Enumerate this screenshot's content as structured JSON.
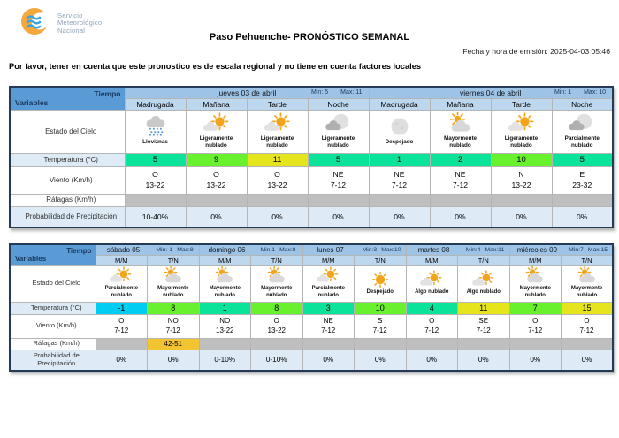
{
  "header": {
    "logo_lines": [
      "Servicio",
      "Meteorológico",
      "Nacional"
    ],
    "title": "Paso Pehuenche- PRONÓSTICO SEMANAL",
    "emission": "Fecha y hora de emisión: 2025-04-03 05:46",
    "notice": "Por favor, tener en cuenta que este pronostico es de escala regional y no tiene en cuenta factores locales"
  },
  "corner": {
    "tiempo": "Tiempo",
    "variables": "Variables"
  },
  "row_labels": [
    "Estado del Cielo",
    "Temperatura (°C)",
    "Viento (Km/h)",
    "Ráfagas (Km/h)",
    "Probabilidad de Precipitación"
  ],
  "palette": {
    "mint": "#0BE39B",
    "green": "#69F12E",
    "yellow": "#E6E41C",
    "cyan": "#00CDF2",
    "gust": "#F2C431",
    "gust_empty": "#BFBFBF"
  },
  "table1": {
    "days": [
      {
        "name": "jueves 03 de abril",
        "min": "Min: 5",
        "max": "Max: 11",
        "cols": [
          "Madrugada",
          "Mañana",
          "Tarde",
          "Noche"
        ]
      },
      {
        "name": "viernes 04 de abril",
        "min": "Min: 1",
        "max": "Max: 10",
        "cols": [
          "Madrugada",
          "Mañana",
          "Tarde",
          "Noche"
        ]
      }
    ],
    "sky": [
      {
        "icon": "drizzle",
        "label": "Lloviznas"
      },
      {
        "icon": "sun_cloud",
        "label": "Ligeramente nublado"
      },
      {
        "icon": "sun_cloud",
        "label": "Ligeramente nublado"
      },
      {
        "icon": "moon_cloud",
        "label": "Ligeramente nublado"
      },
      {
        "icon": "moon",
        "label": "Despejado"
      },
      {
        "icon": "cloud_sun",
        "label": "Mayormente nublado"
      },
      {
        "icon": "sun_cloud",
        "label": "Ligeramente nublado"
      },
      {
        "icon": "moon_cloud",
        "label": "Parcialmente nublado"
      }
    ],
    "temps": [
      {
        "v": "5",
        "c": "mint"
      },
      {
        "v": "9",
        "c": "green"
      },
      {
        "v": "11",
        "c": "yellow"
      },
      {
        "v": "5",
        "c": "mint"
      },
      {
        "v": "1",
        "c": "mint"
      },
      {
        "v": "2",
        "c": "mint"
      },
      {
        "v": "10",
        "c": "green"
      },
      {
        "v": "5",
        "c": "mint"
      }
    ],
    "wind": [
      {
        "d": "O",
        "s": "13-22"
      },
      {
        "d": "O",
        "s": "13-22"
      },
      {
        "d": "O",
        "s": "13-22"
      },
      {
        "d": "NE",
        "s": "7-12"
      },
      {
        "d": "NE",
        "s": "7-12"
      },
      {
        "d": "NE",
        "s": "7-12"
      },
      {
        "d": "N",
        "s": "13-22"
      },
      {
        "d": "E",
        "s": "23-32"
      }
    ],
    "gusts": [
      "",
      "",
      "",
      "",
      "",
      "",
      "",
      ""
    ],
    "precip": [
      "10-40%",
      "0%",
      "0%",
      "0%",
      "0%",
      "0%",
      "0%",
      "0%"
    ]
  },
  "table2": {
    "days": [
      {
        "name": "sábado 05",
        "min": "Min:-1",
        "max": "Max:8",
        "cols": [
          "M/M",
          "T/N"
        ]
      },
      {
        "name": "domingo 06",
        "min": "Min:1",
        "max": "Max:8",
        "cols": [
          "M/M",
          "T/N"
        ]
      },
      {
        "name": "lunes 07",
        "min": "Min:3",
        "max": "Max:10",
        "cols": [
          "M/M",
          "T/N"
        ]
      },
      {
        "name": "martes 08",
        "min": "Min:4",
        "max": "Max:11",
        "cols": [
          "M/M",
          "T/N"
        ]
      },
      {
        "name": "miércoles 09",
        "min": "Min:7",
        "max": "Max:15",
        "cols": [
          "M/M",
          "T/N"
        ]
      }
    ],
    "sky": [
      {
        "icon": "sun_cloud",
        "label": "Parcialmente nublado"
      },
      {
        "icon": "cloud_sun",
        "label": "Mayormente nublado"
      },
      {
        "icon": "cloud_sun",
        "label": "Mayormente nublado"
      },
      {
        "icon": "cloud_sun",
        "label": "Mayormente nublado"
      },
      {
        "icon": "sun_cloud",
        "label": "Parcialmente nublado"
      },
      {
        "icon": "sun",
        "label": "Despejado"
      },
      {
        "icon": "sun_cloud",
        "label": "Algo nublado"
      },
      {
        "icon": "sun_cloud",
        "label": "Algo nublado"
      },
      {
        "icon": "cloud_sun",
        "label": "Mayormente nublado"
      },
      {
        "icon": "cloud_sun",
        "label": "Mayormente nublado"
      }
    ],
    "temps": [
      {
        "v": "-1",
        "c": "cyan"
      },
      {
        "v": "8",
        "c": "green"
      },
      {
        "v": "1",
        "c": "mint"
      },
      {
        "v": "8",
        "c": "green"
      },
      {
        "v": "3",
        "c": "mint"
      },
      {
        "v": "10",
        "c": "green"
      },
      {
        "v": "4",
        "c": "mint"
      },
      {
        "v": "11",
        "c": "yellow"
      },
      {
        "v": "7",
        "c": "green"
      },
      {
        "v": "15",
        "c": "yellow"
      }
    ],
    "wind": [
      {
        "d": "O",
        "s": "7-12"
      },
      {
        "d": "NO",
        "s": "7-12"
      },
      {
        "d": "NO",
        "s": "13-22"
      },
      {
        "d": "O",
        "s": "13-22"
      },
      {
        "d": "NE",
        "s": "7-12"
      },
      {
        "d": "S",
        "s": "7-12"
      },
      {
        "d": "O",
        "s": "7-12"
      },
      {
        "d": "SE",
        "s": "7-12"
      },
      {
        "d": "O",
        "s": "7-12"
      },
      {
        "d": "O",
        "s": "7-12"
      }
    ],
    "gusts": [
      "",
      "42-51",
      "",
      "",
      "",
      "",
      "",
      "",
      "",
      ""
    ],
    "precip": [
      "0%",
      "0%",
      "0-10%",
      "0-10%",
      "0%",
      "0%",
      "0%",
      "0%",
      "0%",
      "0%"
    ]
  }
}
